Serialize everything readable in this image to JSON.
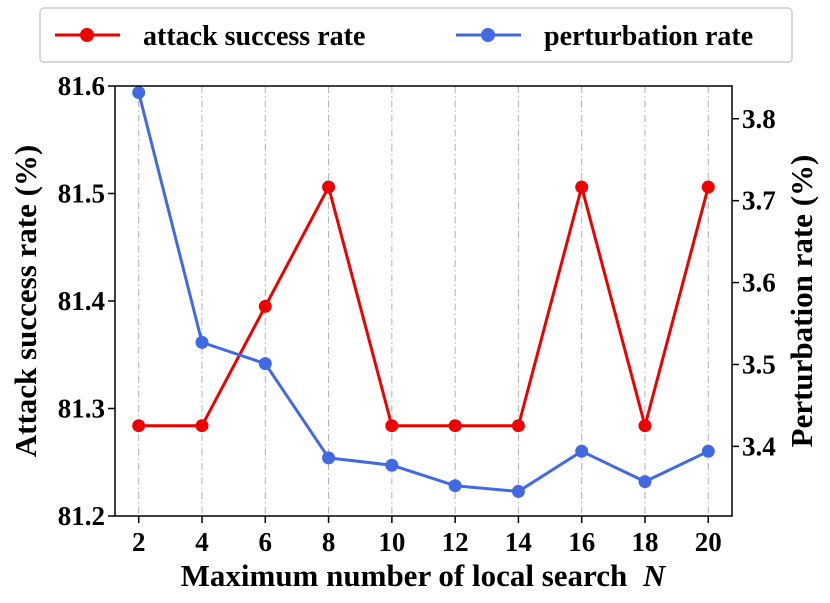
{
  "chart_data": {
    "type": "line",
    "x": [
      2,
      4,
      6,
      8,
      10,
      12,
      14,
      16,
      18,
      20
    ],
    "xlabel": "Maximum number of local search",
    "xlabel_var": "N",
    "ylabel_left": "Attack success rate (%)",
    "ylabel_right": "Perturbation rate (%)",
    "ylim_left": [
      81.2,
      81.6
    ],
    "ylim_right": [
      3.315,
      3.84
    ],
    "xticks": [
      "2",
      "4",
      "6",
      "8",
      "10",
      "12",
      "14",
      "16",
      "18",
      "20"
    ],
    "yticks_left": [
      "81.2",
      "81.3",
      "81.4",
      "81.5",
      "81.6"
    ],
    "yticks_right": [
      "3.4",
      "3.5",
      "3.6",
      "3.7",
      "3.8"
    ],
    "grid": "vertical dash-dot",
    "legend_position": "top",
    "series": [
      {
        "name": "attack success rate",
        "axis": "left",
        "color": "#ee0000",
        "values": [
          81.284,
          81.284,
          81.395,
          81.506,
          81.284,
          81.284,
          81.284,
          81.506,
          81.284,
          81.506
        ]
      },
      {
        "name": "perturbation rate",
        "axis": "right",
        "color": "#4169e1",
        "values": [
          3.832,
          3.527,
          3.501,
          3.386,
          3.377,
          3.352,
          3.345,
          3.394,
          3.357,
          3.394
        ]
      }
    ]
  }
}
